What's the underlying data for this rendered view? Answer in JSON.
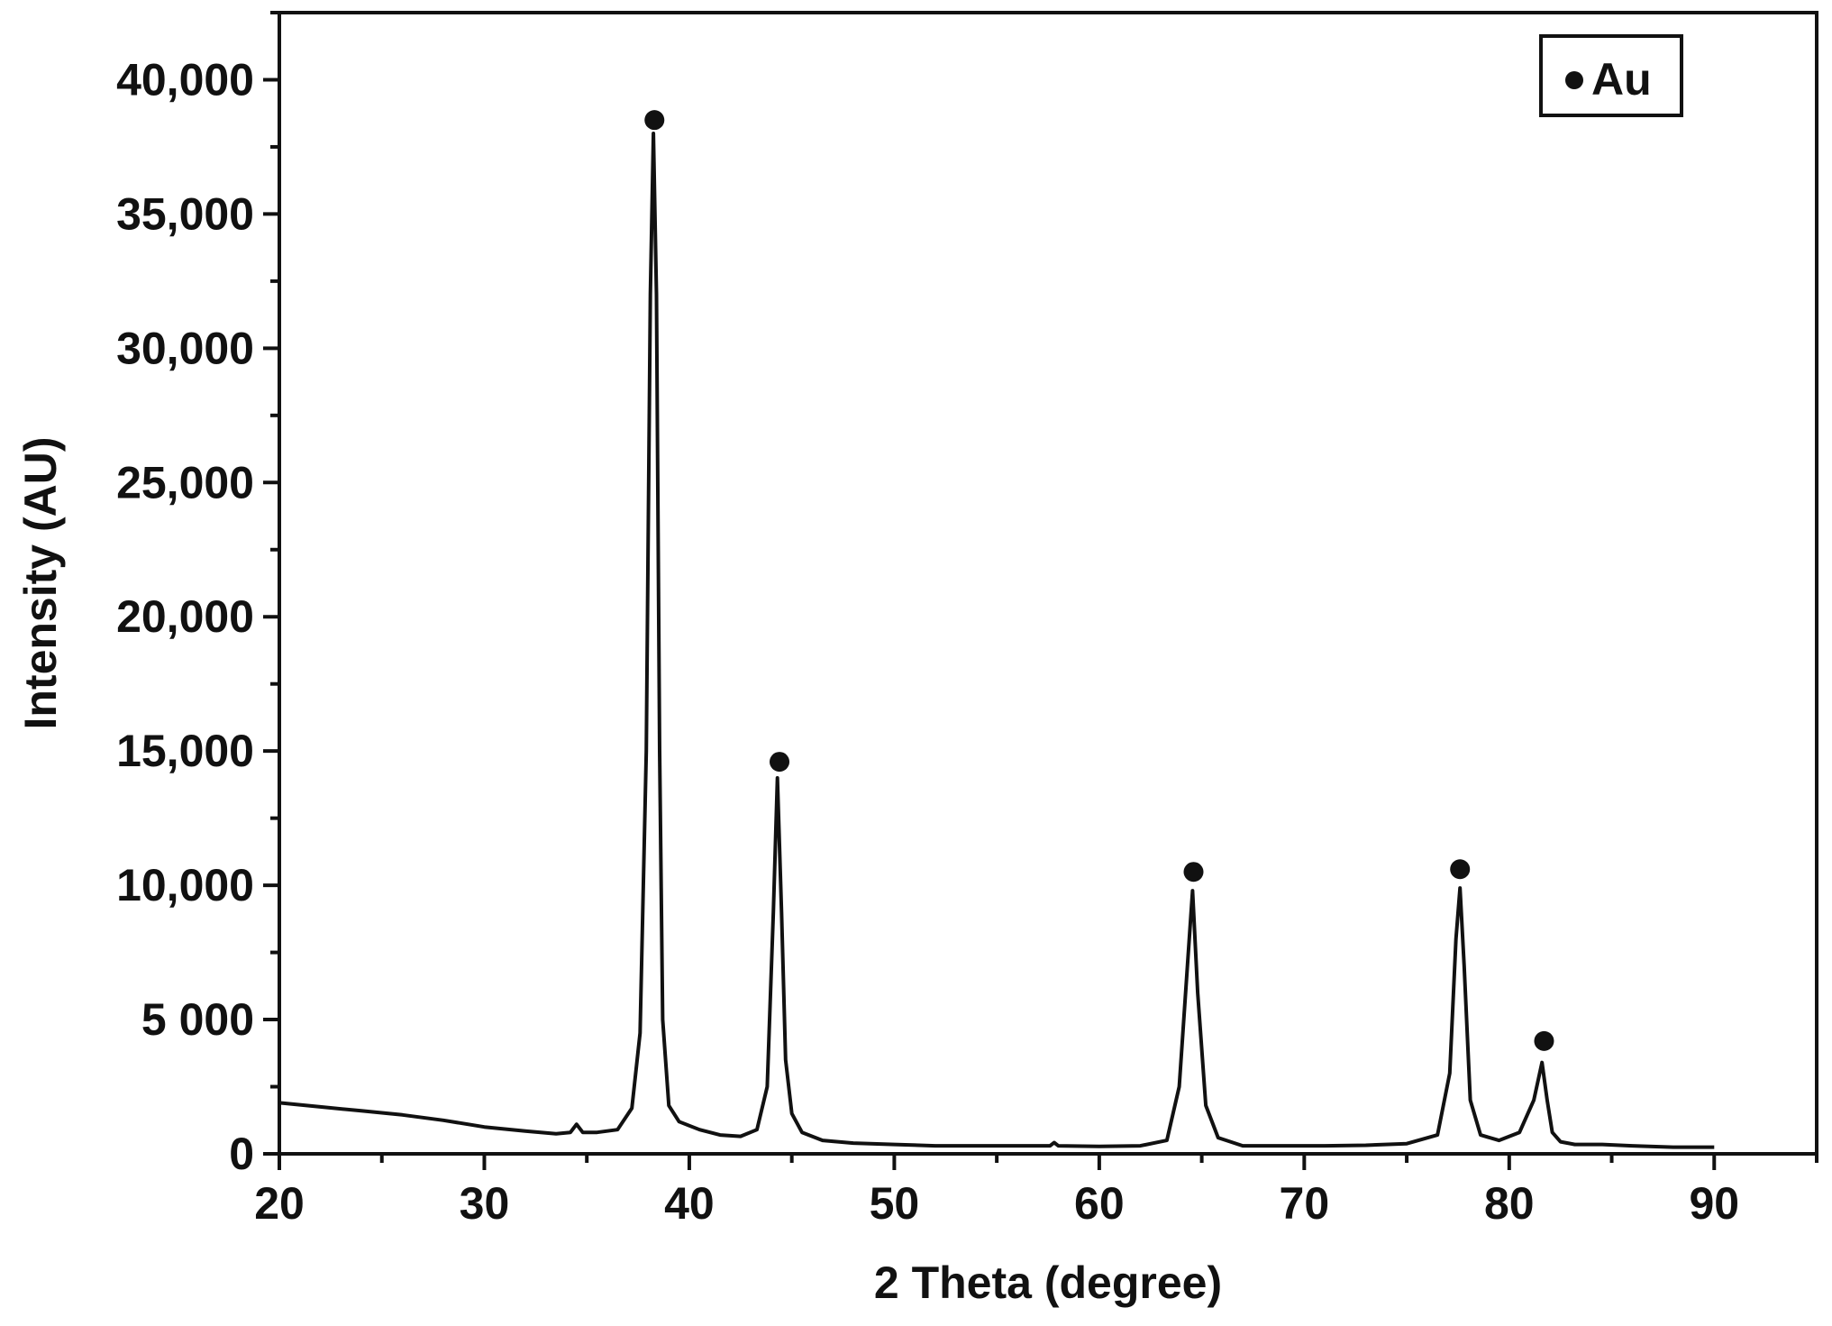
{
  "chart_data": {
    "type": "line",
    "title": "",
    "xlabel": "2 Theta (degree)",
    "ylabel": "Intensity (AU)",
    "xlim": [
      20,
      95
    ],
    "ylim": [
      0,
      42500
    ],
    "x_ticks": [
      20,
      30,
      40,
      50,
      60,
      70,
      80,
      90
    ],
    "x_tick_labels": [
      "20",
      "30",
      "40",
      "50",
      "60",
      "70",
      "80",
      "90"
    ],
    "y_ticks": [
      0,
      5000,
      10000,
      15000,
      20000,
      25000,
      30000,
      35000,
      40000
    ],
    "y_tick_labels": [
      "0",
      "5 000",
      "10,000",
      "15,000",
      "20,000",
      "25,000",
      "30,000",
      "35,000",
      "40,000"
    ],
    "grid": false,
    "legend": {
      "position": "top-right",
      "entries": [
        {
          "marker": "filled-circle",
          "label": "Au"
        }
      ]
    },
    "line_color": "#111111",
    "series": [
      {
        "name": "",
        "x": [
          20,
          22,
          24,
          26,
          28,
          30,
          32,
          33.5,
          34.2,
          34.5,
          34.8,
          35.5,
          36.5,
          37.2,
          37.6,
          37.9,
          38.1,
          38.25,
          38.4,
          38.55,
          38.7,
          39.0,
          39.5,
          40.5,
          41.5,
          42.5,
          43.3,
          43.8,
          44.1,
          44.3,
          44.5,
          44.7,
          45.0,
          45.5,
          46.5,
          48,
          50,
          52,
          54,
          56,
          57.6,
          57.8,
          58,
          60,
          62,
          63.3,
          63.9,
          64.3,
          64.55,
          64.8,
          65.2,
          65.8,
          67,
          69,
          71,
          73,
          75,
          76.5,
          77.1,
          77.4,
          77.6,
          77.8,
          78.1,
          78.6,
          79.5,
          80.5,
          81.2,
          81.6,
          81.85,
          82.1,
          82.5,
          83.2,
          84.5,
          86,
          88,
          90
        ],
        "y": [
          1900,
          1750,
          1600,
          1450,
          1250,
          1000,
          850,
          750,
          800,
          1100,
          800,
          800,
          900,
          1700,
          4500,
          15000,
          32000,
          38000,
          32000,
          15000,
          5000,
          1800,
          1200,
          900,
          700,
          650,
          900,
          2500,
          9000,
          14000,
          9000,
          3500,
          1500,
          800,
          500,
          400,
          350,
          300,
          300,
          300,
          300,
          420,
          300,
          280,
          300,
          500,
          2500,
          7000,
          9800,
          6000,
          1800,
          600,
          300,
          300,
          300,
          320,
          380,
          700,
          3000,
          8000,
          9900,
          7000,
          2000,
          700,
          500,
          800,
          2000,
          3400,
          2000,
          800,
          450,
          350,
          350,
          300,
          250,
          250
        ]
      }
    ],
    "markers": [
      {
        "x": 38.3,
        "y": 38500
      },
      {
        "x": 44.4,
        "y": 14600
      },
      {
        "x": 64.6,
        "y": 10500
      },
      {
        "x": 77.6,
        "y": 10600
      },
      {
        "x": 81.7,
        "y": 4200
      }
    ]
  }
}
